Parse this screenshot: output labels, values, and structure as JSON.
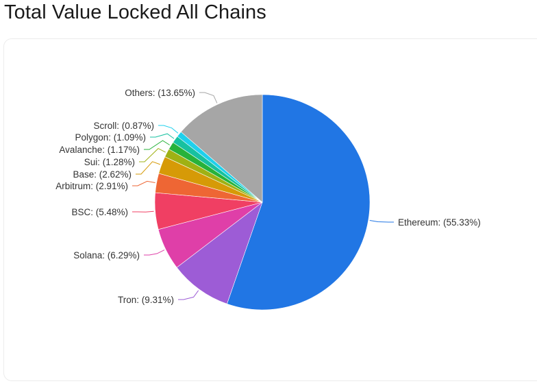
{
  "page": {
    "title": "Total Value Locked All Chains"
  },
  "chart_data": {
    "type": "pie",
    "title": "Total Value Locked All Chains",
    "unit": "%",
    "start_angle_deg": 0,
    "direction": "clockwise",
    "legend": "none",
    "slices": [
      {
        "name": "Ethereum",
        "value": 55.33,
        "label": "Ethereum: (55.33%)",
        "color": "#2176e4"
      },
      {
        "name": "Tron",
        "value": 9.31,
        "label": "Tron: (9.31%)",
        "color": "#9d5cd6"
      },
      {
        "name": "Solana",
        "value": 6.29,
        "label": "Solana: (6.29%)",
        "color": "#df3fa8"
      },
      {
        "name": "BSC",
        "value": 5.48,
        "label": "BSC: (5.48%)",
        "color": "#f03f63"
      },
      {
        "name": "Arbitrum",
        "value": 2.91,
        "label": "Arbitrum: (2.91%)",
        "color": "#ee6634"
      },
      {
        "name": "Base",
        "value": 2.62,
        "label": "Base: (2.62%)",
        "color": "#d69a07"
      },
      {
        "name": "Sui",
        "value": 1.28,
        "label": "Sui: (1.28%)",
        "color": "#9fb114"
      },
      {
        "name": "Avalanche",
        "value": 1.17,
        "label": "Avalanche: (1.17%)",
        "color": "#27b23a"
      },
      {
        "name": "Polygon",
        "value": 1.09,
        "label": "Polygon: (1.09%)",
        "color": "#17c1a0"
      },
      {
        "name": "Scroll",
        "value": 0.87,
        "label": "Scroll: (0.87%)",
        "color": "#1fd0ec"
      },
      {
        "name": "Others",
        "value": 13.65,
        "label": "Others: (13.65%)",
        "color": "#a6a6a6"
      }
    ]
  }
}
